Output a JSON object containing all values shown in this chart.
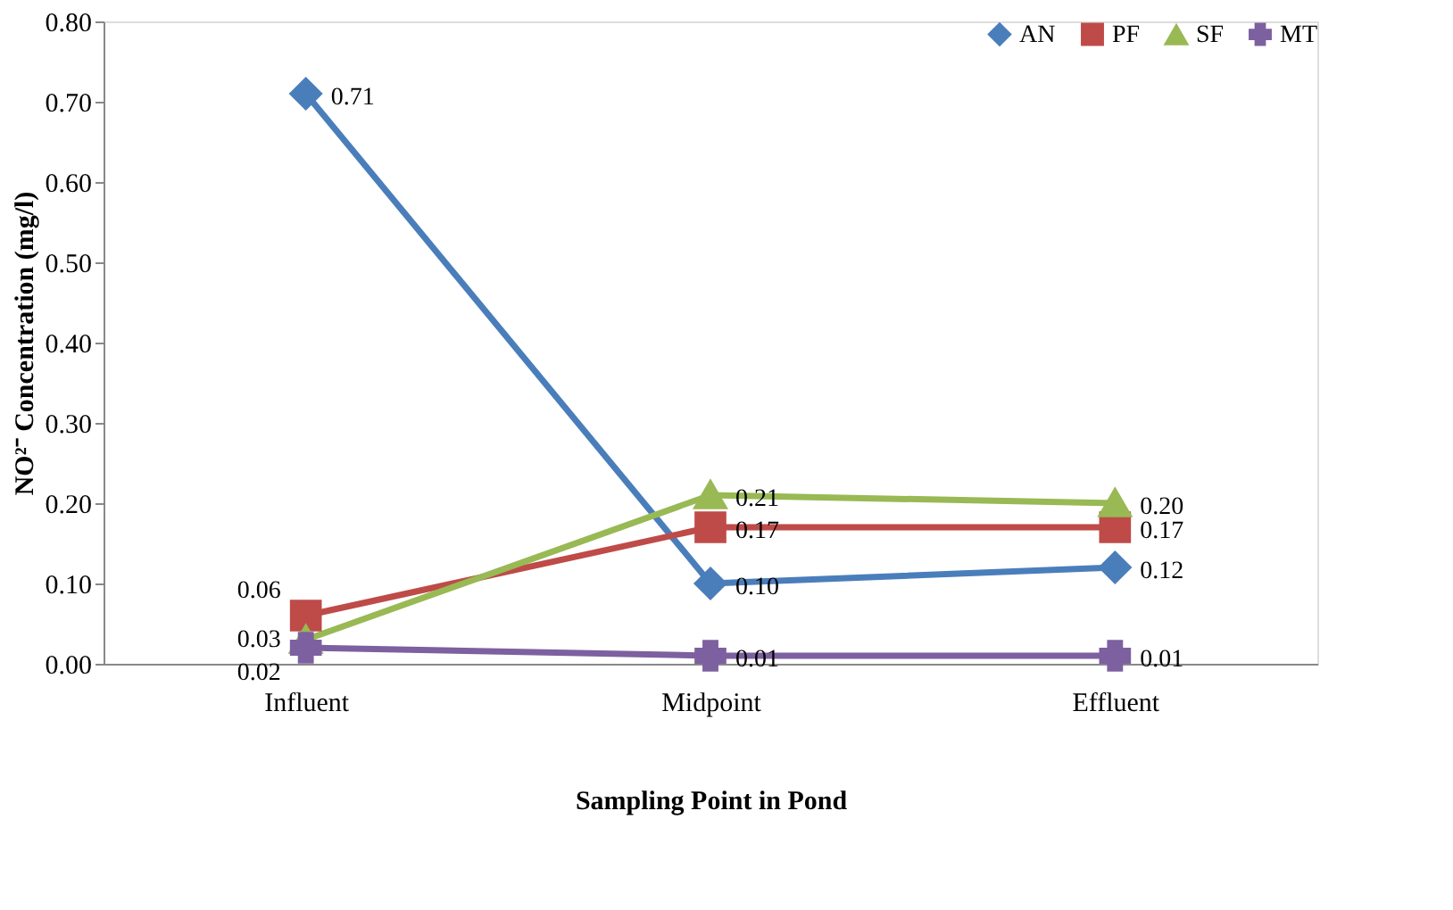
{
  "chart_data": {
    "type": "line",
    "xlabel": "Sampling Point in Pond",
    "ylabel": "NO²⁻ Concentration (mg/l)",
    "categories": [
      "Influent",
      "Midpoint",
      "Effluent"
    ],
    "series": [
      {
        "name": "AN",
        "color": "#4a7ebb",
        "marker": "diamond",
        "values": [
          0.71,
          0.1,
          0.12
        ],
        "value_labels": [
          "0.71",
          "0.10",
          "0.12"
        ]
      },
      {
        "name": "PF",
        "color": "#be4b48",
        "marker": "square",
        "values": [
          0.06,
          0.17,
          0.17
        ],
        "value_labels": [
          "0.06",
          "0.17",
          "0.17"
        ]
      },
      {
        "name": "SF",
        "color": "#98b954",
        "marker": "triangle",
        "values": [
          0.03,
          0.21,
          0.2
        ],
        "value_labels": [
          "0.03",
          "0.21",
          "0.20"
        ]
      },
      {
        "name": "MT",
        "color": "#7d60a0",
        "marker": "cross",
        "values": [
          0.02,
          0.01,
          0.01
        ],
        "value_labels": [
          "0.02",
          "0.01",
          "0.01"
        ]
      }
    ],
    "ylim": [
      0,
      0.8
    ],
    "yticks": [
      {
        "value": 0,
        "label": "0.00"
      },
      {
        "value": 0.1,
        "label": "0.10"
      },
      {
        "value": 0.2,
        "label": "0.20"
      },
      {
        "value": 0.3,
        "label": "0.30"
      },
      {
        "value": 0.4,
        "label": "0.40"
      },
      {
        "value": 0.5,
        "label": "0.50"
      },
      {
        "value": 0.6,
        "label": "0.60"
      },
      {
        "value": 0.7,
        "label": "0.70"
      },
      {
        "value": 0.8,
        "label": "0.80"
      }
    ],
    "grid": false,
    "legend": "top right",
    "line_style": "solid"
  }
}
